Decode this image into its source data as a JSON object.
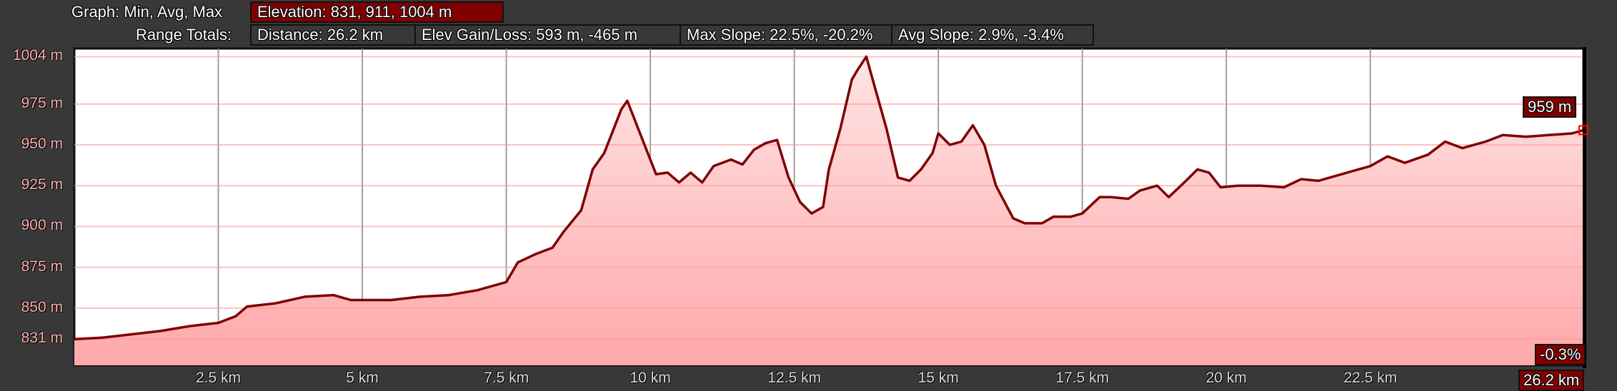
{
  "header": {
    "graph_label": "Graph: Min, Avg, Max",
    "elevation": "Elevation: 831, 911, 1004 m",
    "range_label": "Range Totals:",
    "distance": "Distance: 26.2 km",
    "elev_gain_loss": "Elev Gain/Loss: 593 m, -465 m",
    "max_slope": "Max Slope: 22.5%, -20.2%",
    "avg_slope": "Avg Slope: 2.9%, -3.4%"
  },
  "cursor": {
    "elevation_label": "959 m",
    "slope_label": "-0.3%",
    "distance_label": "26.2 km"
  },
  "colors": {
    "line": "#800000",
    "fill_top": "#ffe4e4",
    "fill_bottom": "#ffa8aa",
    "accent": "#800000",
    "marker": "#ff0000"
  },
  "chart_data": {
    "type": "area",
    "xlim": [
      0,
      26.2
    ],
    "ylim": [
      815,
      1009
    ],
    "grid": true,
    "x_ticks": [
      2.5,
      5,
      7.5,
      10,
      12.5,
      15,
      17.5,
      20,
      22.5
    ],
    "x_tick_labels": [
      "2.5 km",
      "5 km",
      "7.5 km",
      "10 km",
      "12.5 km",
      "15 km",
      "17.5 km",
      "20 km",
      "22.5 km"
    ],
    "y_ticks": [
      831,
      850,
      875,
      900,
      925,
      950,
      975,
      1004
    ],
    "y_tick_labels": [
      "831 m",
      "850 m",
      "875 m",
      "900 m",
      "925 m",
      "950 m",
      "975 m",
      "1004 m"
    ],
    "x": [
      0,
      0.5,
      1,
      1.5,
      2,
      2.5,
      2.8,
      3.0,
      3.5,
      4.0,
      4.5,
      4.8,
      5.0,
      5.5,
      6.0,
      6.5,
      7.0,
      7.5,
      7.7,
      8.0,
      8.3,
      8.5,
      8.8,
      9.0,
      9.2,
      9.5,
      9.6,
      9.9,
      10.1,
      10.3,
      10.5,
      10.7,
      10.9,
      11.1,
      11.4,
      11.6,
      11.8,
      12.0,
      12.2,
      12.4,
      12.6,
      12.8,
      13.0,
      13.1,
      13.3,
      13.5,
      13.6,
      13.75,
      13.9,
      14.1,
      14.3,
      14.5,
      14.7,
      14.9,
      15.0,
      15.2,
      15.4,
      15.6,
      15.8,
      16.0,
      16.3,
      16.5,
      16.8,
      17.0,
      17.3,
      17.5,
      17.8,
      18.0,
      18.3,
      18.5,
      18.8,
      19.0,
      19.3,
      19.5,
      19.7,
      19.9,
      20.2,
      20.6,
      21.0,
      21.3,
      21.6,
      22.0,
      22.5,
      22.8,
      23.1,
      23.5,
      23.8,
      24.1,
      24.5,
      24.8,
      25.2,
      25.6,
      26.0,
      26.2
    ],
    "y": [
      831,
      832,
      834,
      836,
      839,
      841,
      845,
      851,
      853,
      857,
      858,
      855,
      855,
      855,
      857,
      858,
      861,
      866,
      878,
      883,
      887,
      897,
      910,
      935,
      945,
      972,
      977,
      950,
      932,
      933,
      927,
      933,
      927,
      937,
      941,
      938,
      947,
      951,
      953,
      930,
      915,
      908,
      912,
      935,
      960,
      990,
      996,
      1004,
      985,
      960,
      930,
      928,
      935,
      945,
      957,
      950,
      952,
      962,
      950,
      925,
      905,
      902,
      902,
      906,
      906,
      908,
      918,
      918,
      917,
      922,
      925,
      918,
      928,
      935,
      933,
      924,
      925,
      925,
      924,
      929,
      928,
      932,
      937,
      943,
      939,
      944,
      952,
      948,
      952,
      956,
      955,
      956,
      957,
      959
    ]
  }
}
